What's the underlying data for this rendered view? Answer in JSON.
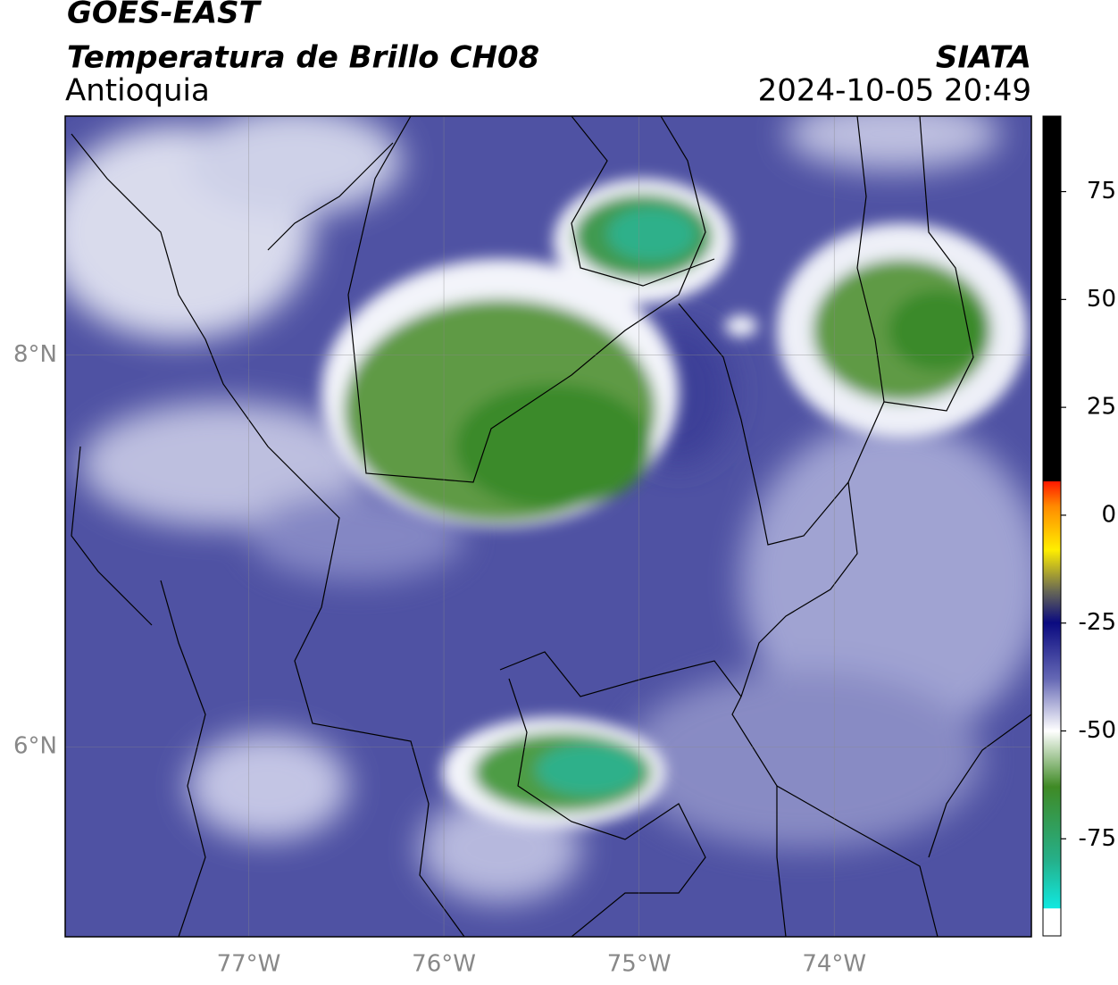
{
  "header": {
    "title": "GOES-EAST",
    "subtitle": "Temperatura de Brillo CH08",
    "region": "Antioquia",
    "source": "SIATA",
    "datetime": "2024-10-05 20:49"
  },
  "map": {
    "xlim": [
      -77.94,
      -72.99
    ],
    "ylim": [
      5.03,
      9.22
    ],
    "xticks": [
      {
        "value": -77,
        "label": "77°W"
      },
      {
        "value": -76,
        "label": "76°W"
      },
      {
        "value": -75,
        "label": "75°W"
      },
      {
        "value": -74,
        "label": "74°W"
      }
    ],
    "yticks": [
      {
        "value": 8,
        "label": "8°N"
      },
      {
        "value": 6,
        "label": "6°N"
      }
    ],
    "grid": true
  },
  "colorbar": {
    "lim": [
      -97.5,
      92.5
    ],
    "ticks": [
      75,
      50,
      25,
      0,
      -25,
      -50,
      -75
    ]
  }
}
